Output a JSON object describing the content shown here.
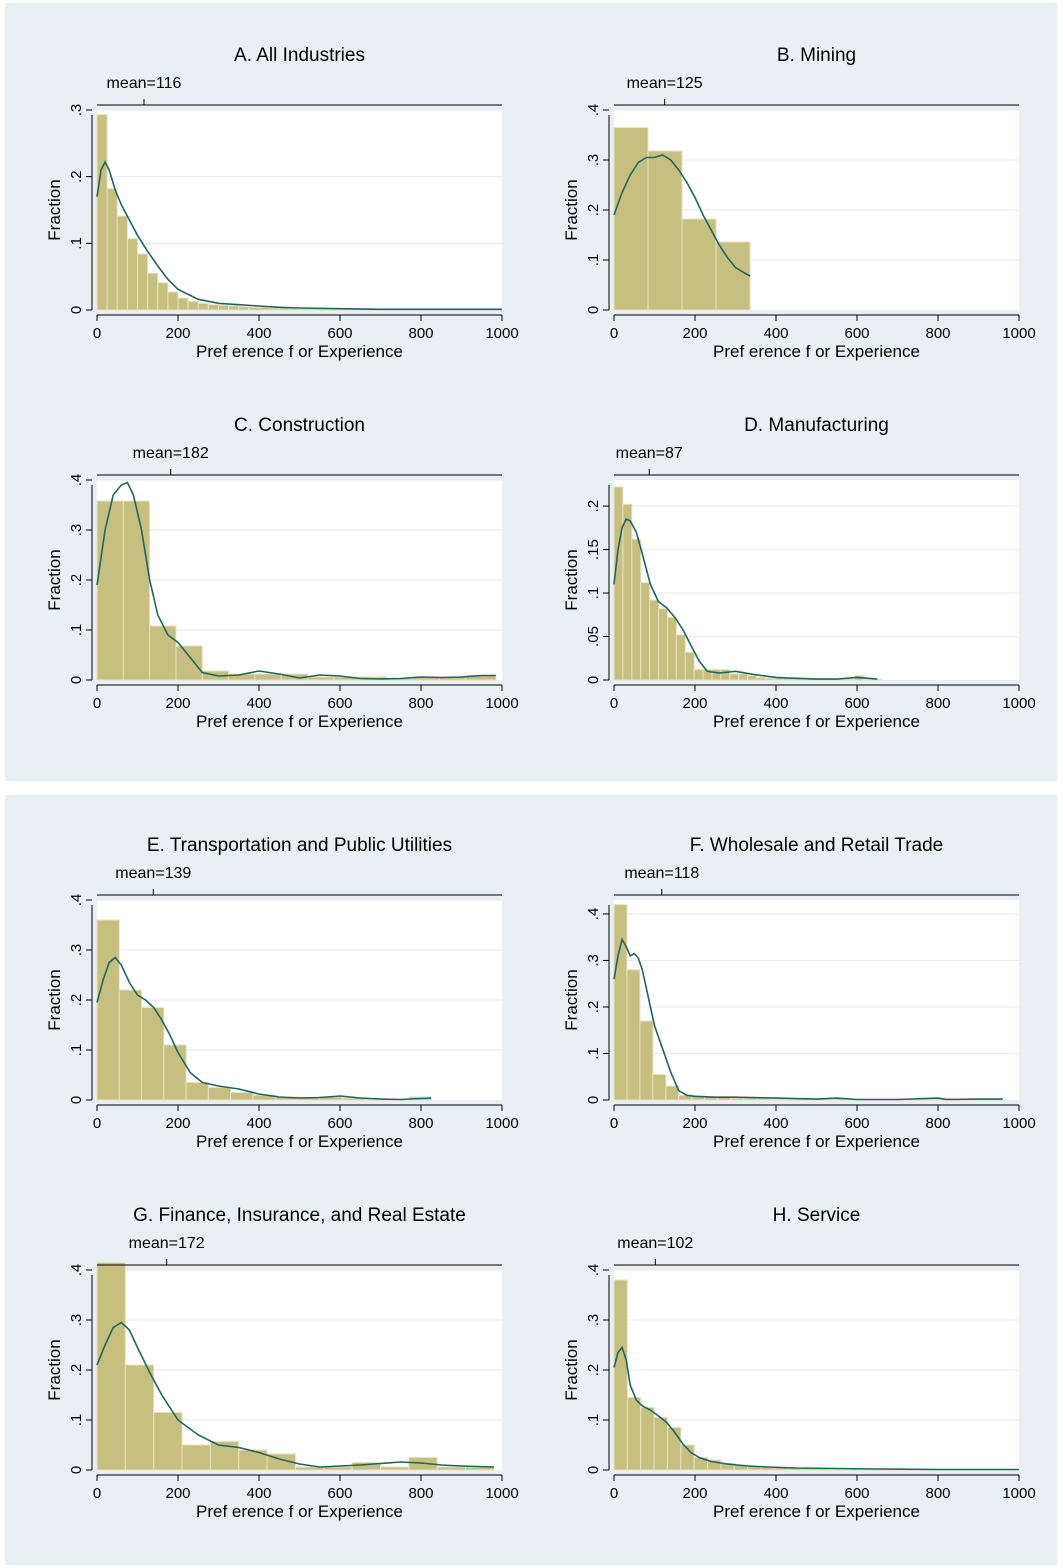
{
  "chart_data": [
    {
      "type": "bar",
      "title": "A. All Industries",
      "mean_label": "mean=116",
      "mean": 116,
      "xlabel": "Pref erence f or Experience",
      "ylabel": "Fraction",
      "xlim": [
        0,
        1000
      ],
      "ylim": [
        0,
        0.3
      ],
      "xticks": [
        "0",
        "200",
        "400",
        "600",
        "800",
        "1000"
      ],
      "xtick_values": [
        0,
        200,
        400,
        600,
        800,
        1000
      ],
      "yticks": [
        "0",
        ".1",
        ".2",
        ".3"
      ],
      "ytick_values": [
        0,
        0.1,
        0.2,
        0.3
      ],
      "bin_edges": [
        0,
        25,
        50,
        75,
        100,
        125,
        150,
        175,
        200,
        225,
        250,
        275,
        300,
        325,
        350,
        375,
        400,
        425,
        450,
        475,
        500,
        550,
        600,
        650,
        700,
        750,
        800,
        850,
        900,
        950,
        1000
      ],
      "values": [
        0.293,
        0.182,
        0.141,
        0.107,
        0.084,
        0.055,
        0.041,
        0.027,
        0.018,
        0.013,
        0.01,
        0.008,
        0.007,
        0.006,
        0.005,
        0.004,
        0.004,
        0.003,
        0.003,
        0.002,
        0.002,
        0.002,
        0.002,
        0.001,
        0.001,
        0.001,
        0.001,
        0.001,
        0.001,
        0.001
      ],
      "density_curve": {
        "x": [
          0,
          10,
          20,
          30,
          45,
          60,
          80,
          100,
          125,
          150,
          175,
          200,
          250,
          300,
          350,
          400,
          450,
          500,
          600,
          700,
          800,
          900,
          1000
        ],
        "y": [
          0.17,
          0.21,
          0.222,
          0.21,
          0.18,
          0.158,
          0.135,
          0.112,
          0.088,
          0.066,
          0.046,
          0.031,
          0.016,
          0.01,
          0.008,
          0.006,
          0.004,
          0.003,
          0.002,
          0.001,
          0.001,
          0.001,
          0.001
        ]
      },
      "grid": true
    },
    {
      "type": "bar",
      "title": "B. Mining",
      "mean_label": "mean=125",
      "mean": 125,
      "xlabel": "Pref erence f or Experience",
      "ylabel": "Fraction",
      "xlim": [
        0,
        1000
      ],
      "ylim": [
        0,
        0.4
      ],
      "xticks": [
        "0",
        "200",
        "400",
        "600",
        "800",
        "1000"
      ],
      "xtick_values": [
        0,
        200,
        400,
        600,
        800,
        1000
      ],
      "yticks": [
        "0",
        ".1",
        ".2",
        ".3",
        ".4"
      ],
      "ytick_values": [
        0,
        0.1,
        0.2,
        0.3,
        0.4
      ],
      "bin_edges": [
        0,
        84,
        168,
        252,
        336
      ],
      "values": [
        0.365,
        0.318,
        0.182,
        0.136
      ],
      "density_curve": {
        "x": [
          0,
          20,
          40,
          60,
          80,
          100,
          120,
          140,
          160,
          180,
          200,
          220,
          240,
          260,
          280,
          300,
          320,
          336
        ],
        "y": [
          0.19,
          0.235,
          0.27,
          0.295,
          0.305,
          0.305,
          0.31,
          0.3,
          0.28,
          0.255,
          0.225,
          0.19,
          0.16,
          0.13,
          0.105,
          0.085,
          0.075,
          0.068
        ]
      },
      "grid": true
    },
    {
      "type": "bar",
      "title": "C. Construction",
      "mean_label": "mean=182",
      "mean": 182,
      "xlabel": "Pref erence f or Experience",
      "ylabel": "Fraction",
      "xlim": [
        0,
        1000
      ],
      "ylim": [
        0,
        0.4
      ],
      "xticks": [
        "0",
        "200",
        "400",
        "600",
        "800",
        "1000"
      ],
      "xtick_values": [
        0,
        200,
        400,
        600,
        800,
        1000
      ],
      "yticks": [
        "0",
        ".1",
        ".2",
        ".3",
        ".4"
      ],
      "ytick_values": [
        0,
        0.1,
        0.2,
        0.3,
        0.4
      ],
      "bin_edges": [
        0,
        65,
        130,
        195,
        260,
        325,
        390,
        455,
        520,
        585,
        650,
        715,
        780,
        845,
        910,
        985
      ],
      "values": [
        0.358,
        0.358,
        0.108,
        0.068,
        0.018,
        0.012,
        0.012,
        0.012,
        0.006,
        0.006,
        0.006,
        0.003,
        0.006,
        0.006,
        0.009
      ],
      "density_curve": {
        "x": [
          0,
          20,
          40,
          60,
          75,
          90,
          110,
          130,
          150,
          175,
          200,
          230,
          260,
          300,
          350,
          400,
          450,
          500,
          550,
          600,
          650,
          700,
          750,
          800,
          850,
          900,
          950,
          985
        ],
        "y": [
          0.19,
          0.3,
          0.37,
          0.39,
          0.395,
          0.37,
          0.3,
          0.2,
          0.13,
          0.09,
          0.075,
          0.045,
          0.015,
          0.008,
          0.01,
          0.018,
          0.012,
          0.004,
          0.01,
          0.008,
          0.003,
          0.002,
          0.003,
          0.006,
          0.005,
          0.006,
          0.009,
          0.009
        ]
      },
      "grid": true
    },
    {
      "type": "bar",
      "title": "D. Manufacturing",
      "mean_label": "mean=87",
      "mean": 87,
      "xlabel": "Pref erence f or Experience",
      "ylabel": "Fraction",
      "xlim": [
        0,
        1000
      ],
      "ylim": [
        0,
        0.23
      ],
      "xticks": [
        "0",
        "200",
        "400",
        "600",
        "800",
        "1000"
      ],
      "xtick_values": [
        0,
        200,
        400,
        600,
        800,
        1000
      ],
      "yticks": [
        "0",
        ".05",
        ".1",
        ".15",
        ".2"
      ],
      "ytick_values": [
        0,
        0.05,
        0.1,
        0.15,
        0.2
      ],
      "bin_edges": [
        0,
        22,
        44,
        66,
        88,
        110,
        132,
        154,
        176,
        198,
        220,
        242,
        264,
        286,
        308,
        330,
        352,
        374,
        396,
        418,
        440,
        462,
        484,
        506,
        528,
        550,
        572,
        594,
        616,
        638,
        660
      ],
      "values": [
        0.222,
        0.202,
        0.162,
        0.112,
        0.092,
        0.082,
        0.072,
        0.052,
        0.032,
        0.012,
        0.012,
        0.012,
        0.012,
        0.007,
        0.007,
        0.005,
        0.003,
        0.002,
        0.002,
        0.002,
        0.002,
        0.002,
        0.002,
        0.001,
        0.001,
        0.001,
        0.001,
        0.005,
        0.001,
        0.001
      ],
      "density_curve": {
        "x": [
          0,
          10,
          20,
          30,
          40,
          55,
          70,
          90,
          110,
          130,
          150,
          170,
          190,
          210,
          230,
          260,
          300,
          350,
          400,
          450,
          500,
          550,
          600,
          650
        ],
        "y": [
          0.11,
          0.15,
          0.175,
          0.185,
          0.183,
          0.17,
          0.145,
          0.11,
          0.09,
          0.083,
          0.072,
          0.058,
          0.04,
          0.022,
          0.01,
          0.008,
          0.01,
          0.006,
          0.003,
          0.002,
          0.001,
          0.001,
          0.003,
          0.001
        ]
      },
      "grid": true
    },
    {
      "type": "bar",
      "title": "E. Transportation and Public Utilities",
      "mean_label": "mean=139",
      "mean": 139,
      "xlabel": "Pref erence f or Experience",
      "ylabel": "Fraction",
      "xlim": [
        0,
        1000
      ],
      "ylim": [
        0,
        0.4
      ],
      "xticks": [
        "0",
        "200",
        "400",
        "600",
        "800",
        "1000"
      ],
      "xtick_values": [
        0,
        200,
        400,
        600,
        800,
        1000
      ],
      "yticks": [
        "0",
        ".1",
        ".2",
        ".3",
        ".4"
      ],
      "ytick_values": [
        0,
        0.1,
        0.2,
        0.3,
        0.4
      ],
      "bin_edges": [
        0,
        55,
        110,
        165,
        220,
        275,
        330,
        385,
        440,
        495,
        550,
        605,
        660,
        715,
        770,
        825
      ],
      "values": [
        0.36,
        0.22,
        0.185,
        0.11,
        0.035,
        0.025,
        0.015,
        0.01,
        0.006,
        0.005,
        0.006,
        0.004,
        0.002,
        0.001,
        0.006
      ],
      "density_curve": {
        "x": [
          0,
          15,
          30,
          45,
          60,
          80,
          100,
          120,
          140,
          160,
          180,
          200,
          230,
          260,
          300,
          350,
          400,
          450,
          500,
          550,
          600,
          650,
          700,
          750,
          800,
          825
        ],
        "y": [
          0.195,
          0.24,
          0.275,
          0.285,
          0.27,
          0.235,
          0.21,
          0.2,
          0.185,
          0.16,
          0.13,
          0.095,
          0.055,
          0.035,
          0.028,
          0.022,
          0.012,
          0.006,
          0.004,
          0.005,
          0.008,
          0.004,
          0.002,
          0.001,
          0.003,
          0.004
        ]
      },
      "grid": true
    },
    {
      "type": "bar",
      "title": "F. Wholesale and Retail Trade",
      "mean_label": "mean=118",
      "mean": 118,
      "xlabel": "Pref erence f or Experience",
      "ylabel": "Fraction",
      "xlim": [
        0,
        1000
      ],
      "ylim": [
        0,
        0.43
      ],
      "xticks": [
        "0",
        "200",
        "400",
        "600",
        "800",
        "1000"
      ],
      "xtick_values": [
        0,
        200,
        400,
        600,
        800,
        1000
      ],
      "yticks": [
        "0",
        ".1",
        ".2",
        ".3",
        ".4"
      ],
      "ytick_values": [
        0,
        0.1,
        0.2,
        0.3,
        0.4
      ],
      "bin_edges": [
        0,
        32,
        64,
        96,
        128,
        160,
        192,
        224,
        256,
        288,
        320,
        352,
        384,
        416,
        448,
        480,
        512,
        544,
        576,
        608,
        640,
        672,
        704,
        736,
        768,
        800,
        832,
        864,
        896,
        928,
        960
      ],
      "values": [
        0.42,
        0.28,
        0.17,
        0.055,
        0.03,
        0.01,
        0.008,
        0.006,
        0.006,
        0.004,
        0.004,
        0.003,
        0.002,
        0.002,
        0.002,
        0.001,
        0.001,
        0.003,
        0.001,
        0.001,
        0.001,
        0.001,
        0.001,
        0.001,
        0.001,
        0.004,
        0.001,
        0.001,
        0.001,
        0.002
      ],
      "density_curve": {
        "x": [
          0,
          10,
          20,
          30,
          40,
          50,
          60,
          70,
          80,
          100,
          120,
          140,
          160,
          180,
          200,
          250,
          300,
          400,
          500,
          550,
          600,
          700,
          800,
          820,
          900,
          960
        ],
        "y": [
          0.26,
          0.31,
          0.345,
          0.33,
          0.31,
          0.315,
          0.305,
          0.28,
          0.24,
          0.16,
          0.11,
          0.06,
          0.02,
          0.01,
          0.008,
          0.006,
          0.006,
          0.004,
          0.002,
          0.004,
          0.001,
          0.001,
          0.004,
          0.001,
          0.002,
          0.002
        ]
      },
      "grid": true
    },
    {
      "type": "bar",
      "title": "G. Finance, Insurance, and Real Estate",
      "mean_label": "mean=172",
      "mean": 172,
      "xlabel": "Pref erence f or Experience",
      "ylabel": "Fraction",
      "xlim": [
        0,
        1000
      ],
      "ylim": [
        0,
        0.4
      ],
      "xticks": [
        "0",
        "200",
        "400",
        "600",
        "800",
        "1000"
      ],
      "xtick_values": [
        0,
        200,
        400,
        600,
        800,
        1000
      ],
      "yticks": [
        "0",
        ".1",
        ".2",
        ".3",
        ".4"
      ],
      "ytick_values": [
        0,
        0.1,
        0.2,
        0.3,
        0.4
      ],
      "bin_edges": [
        0,
        70,
        140,
        210,
        280,
        350,
        420,
        490,
        560,
        630,
        700,
        770,
        840,
        910,
        980
      ],
      "values": [
        0.415,
        0.21,
        0.115,
        0.05,
        0.057,
        0.04,
        0.032,
        0.006,
        0.006,
        0.015,
        0.006,
        0.025,
        0.006,
        0.006
      ],
      "density_curve": {
        "x": [
          0,
          20,
          40,
          60,
          80,
          100,
          130,
          160,
          200,
          250,
          300,
          350,
          400,
          450,
          500,
          550,
          600,
          650,
          700,
          750,
          800,
          850,
          900,
          980
        ],
        "y": [
          0.21,
          0.25,
          0.285,
          0.295,
          0.28,
          0.245,
          0.195,
          0.15,
          0.1,
          0.07,
          0.05,
          0.045,
          0.035,
          0.022,
          0.012,
          0.006,
          0.008,
          0.01,
          0.013,
          0.016,
          0.014,
          0.01,
          0.008,
          0.006
        ]
      },
      "grid": true
    },
    {
      "type": "bar",
      "title": "H. Service",
      "mean_label": "mean=102",
      "mean": 102,
      "xlabel": "Pref erence f or Experience",
      "ylabel": "Fraction",
      "xlim": [
        0,
        1000
      ],
      "ylim": [
        0,
        0.4
      ],
      "xticks": [
        "0",
        "200",
        "400",
        "600",
        "800",
        "1000"
      ],
      "xtick_values": [
        0,
        200,
        400,
        600,
        800,
        1000
      ],
      "yticks": [
        "0",
        ".1",
        ".2",
        ".3",
        ".4"
      ],
      "ytick_values": [
        0,
        0.1,
        0.2,
        0.3,
        0.4
      ],
      "bin_edges": [
        0,
        33,
        66,
        99,
        132,
        165,
        198,
        231,
        264,
        297,
        330,
        363,
        396,
        429,
        462,
        495,
        528,
        561,
        594,
        627,
        660,
        693,
        726,
        759,
        792,
        825,
        858,
        891,
        924,
        957,
        990
      ],
      "values": [
        0.38,
        0.145,
        0.125,
        0.105,
        0.085,
        0.05,
        0.025,
        0.02,
        0.013,
        0.01,
        0.007,
        0.005,
        0.005,
        0.004,
        0.003,
        0.003,
        0.002,
        0.002,
        0.002,
        0.002,
        0.001,
        0.001,
        0.001,
        0.001,
        0.001,
        0.001,
        0.001,
        0.001,
        0.001,
        0.001
      ],
      "density_curve": {
        "x": [
          0,
          10,
          20,
          30,
          40,
          55,
          70,
          90,
          110,
          130,
          150,
          170,
          190,
          210,
          240,
          280,
          330,
          380,
          450,
          550,
          650,
          800,
          1000
        ],
        "y": [
          0.205,
          0.235,
          0.245,
          0.22,
          0.17,
          0.14,
          0.128,
          0.12,
          0.108,
          0.095,
          0.075,
          0.052,
          0.035,
          0.025,
          0.017,
          0.012,
          0.008,
          0.006,
          0.004,
          0.003,
          0.002,
          0.001,
          0.001
        ]
      },
      "grid": true
    }
  ],
  "colors": {
    "background": "#e9f0f3",
    "plot_area": "#ffffff",
    "bar_fill": "#c7bf7f",
    "bar_edge": "#e8e2c0",
    "curve": "#1f6661",
    "grid": "#eaeaea"
  }
}
